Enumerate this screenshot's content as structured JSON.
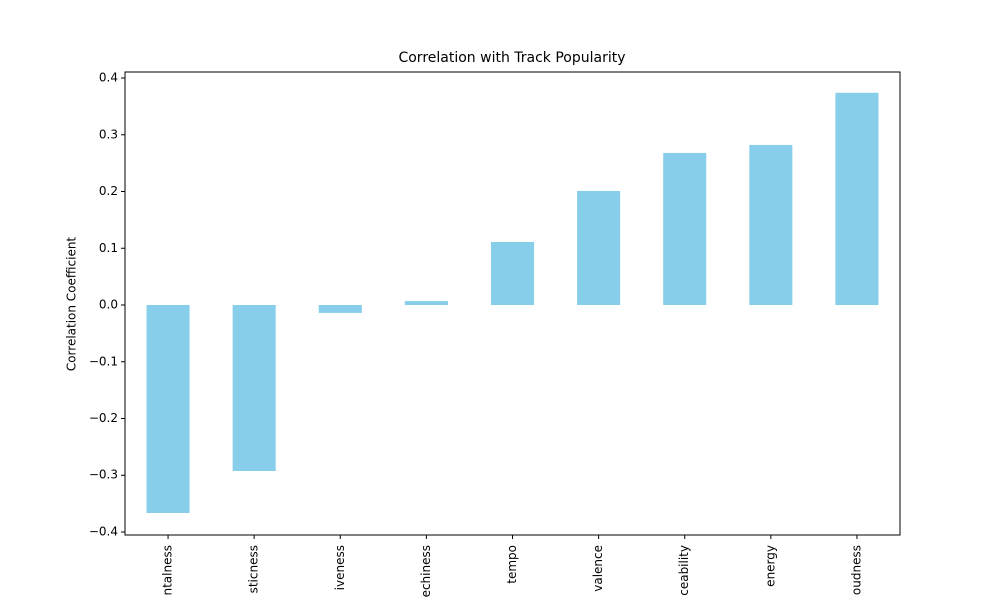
{
  "chart_data": {
    "type": "bar",
    "title": "Correlation with Track Popularity",
    "y_label": "Correlation Coefficient",
    "categories": [
      "ntalness",
      "sticness",
      "iveness",
      "echiness",
      "tempo",
      "valence",
      "ceability",
      "energy",
      "oudness"
    ],
    "values": [
      -0.3665,
      -0.2925,
      -0.014,
      0.007,
      0.111,
      0.201,
      0.268,
      0.282,
      0.374
    ],
    "color": "#87ceeb",
    "ylim": [
      -0.4053,
      0.4106
    ],
    "yticks": [
      {
        "value": -0.4,
        "label": "−0.4"
      },
      {
        "value": -0.3,
        "label": "−0.3"
      },
      {
        "value": -0.2,
        "label": "−0.2"
      },
      {
        "value": -0.1,
        "label": "−0.1"
      },
      {
        "value": 0,
        "label": "0.0"
      },
      0.1,
      0.2,
      0.3,
      0.4
    ],
    "grid": false
  }
}
